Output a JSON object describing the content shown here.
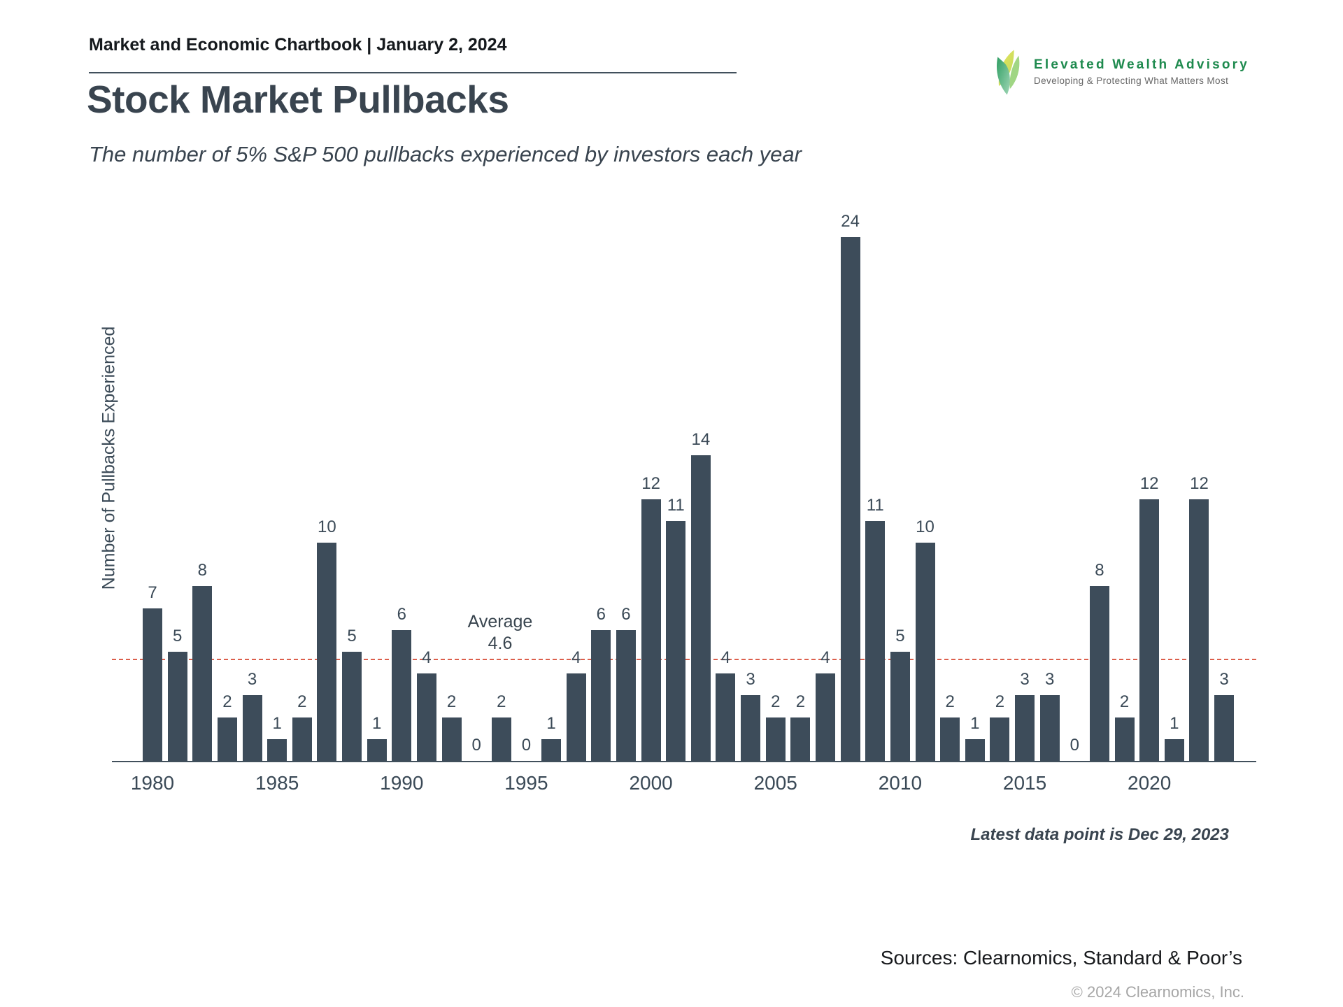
{
  "header": {
    "chartbook_label": "Market and Economic Chartbook | January 2, 2024"
  },
  "logo": {
    "name": "Elevated Wealth Advisory",
    "tagline": "Developing & Protecting What Matters Most",
    "brand_green": "#1e8a4e"
  },
  "title": "Stock Market Pullbacks",
  "subtitle": "The number of 5% S&P 500 pullbacks experienced by investors each year",
  "chart_data": {
    "type": "bar",
    "title": "Stock Market Pullbacks",
    "xlabel": "",
    "ylabel": "Number of Pullbacks Experienced",
    "categories": [
      1980,
      1981,
      1982,
      1983,
      1984,
      1985,
      1986,
      1987,
      1988,
      1989,
      1990,
      1991,
      1992,
      1993,
      1994,
      1995,
      1996,
      1997,
      1998,
      1999,
      2000,
      2001,
      2002,
      2003,
      2004,
      2005,
      2006,
      2007,
      2008,
      2009,
      2010,
      2011,
      2012,
      2013,
      2014,
      2015,
      2016,
      2017,
      2018,
      2019,
      2020,
      2021,
      2022,
      2023
    ],
    "values": [
      7,
      5,
      8,
      2,
      3,
      1,
      2,
      10,
      5,
      1,
      6,
      4,
      2,
      0,
      2,
      0,
      1,
      4,
      6,
      6,
      12,
      11,
      14,
      4,
      3,
      2,
      2,
      4,
      24,
      11,
      5,
      10,
      2,
      1,
      2,
      3,
      3,
      0,
      8,
      2,
      12,
      1,
      12,
      3
    ],
    "x_ticks": [
      1980,
      1985,
      1990,
      1995,
      2000,
      2005,
      2010,
      2015,
      2020
    ],
    "average": {
      "label": "Average",
      "value": "4.6",
      "numeric": 4.6
    },
    "ylim": [
      0,
      24
    ],
    "grid": false,
    "legend": false,
    "bar_color": "#3d4c5a",
    "average_line_color": "#dc5f4c",
    "data_labels": true
  },
  "annotations": {
    "latest_data": "Latest data point is Dec 29, 2023"
  },
  "footer": {
    "sources": "Sources: Clearnomics, Standard & Poor’s",
    "copyright": "© 2024 Clearnomics, Inc."
  }
}
